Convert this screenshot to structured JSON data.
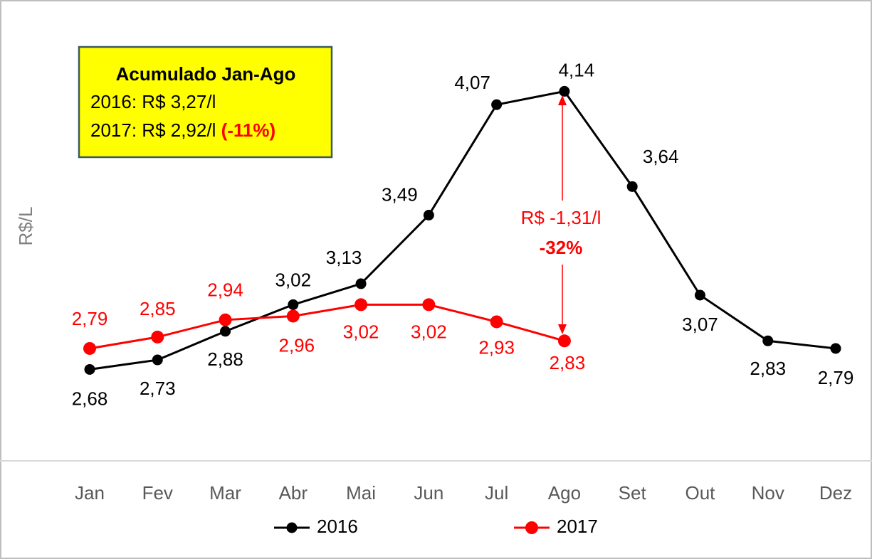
{
  "chart_data": {
    "type": "line",
    "y_label": "R$/L",
    "categories": [
      "Jan",
      "Fev",
      "Mar",
      "Abr",
      "Mai",
      "Jun",
      "Jul",
      "Ago",
      "Set",
      "Out",
      "Nov",
      "Dez"
    ],
    "series": [
      {
        "name": "2016",
        "color": "#000000",
        "values": [
          2.68,
          2.73,
          2.88,
          3.02,
          3.13,
          3.49,
          4.07,
          4.14,
          3.64,
          3.07,
          2.83,
          2.79
        ],
        "value_labels": [
          "2,68",
          "2,73",
          "2,88",
          "3,02",
          "3,13",
          "3,49",
          "4,07",
          "4,14",
          "3,64",
          "3,07",
          "2,83",
          "2,79"
        ]
      },
      {
        "name": "2017",
        "color": "#ff0000",
        "values": [
          2.79,
          2.85,
          2.94,
          2.96,
          3.02,
          3.02,
          2.93,
          2.83,
          null,
          null,
          null,
          null
        ],
        "value_labels": [
          "2,79",
          "2,85",
          "2,94",
          "2,96",
          "3,02",
          "3,02",
          "2,93",
          "2,83",
          null,
          null,
          null,
          null
        ]
      }
    ],
    "ylim": [
      2.2,
      4.5
    ],
    "annotations": {
      "box": {
        "title": "Acumulado Jan-Ago",
        "line1": "2016: R$ 3,27/l",
        "line2": "2017: R$ 2,92/l",
        "line2_highlight": "(-11%)"
      },
      "difference": {
        "value_text": "R$ -1,31/l",
        "percent_text": "-32%"
      }
    }
  }
}
